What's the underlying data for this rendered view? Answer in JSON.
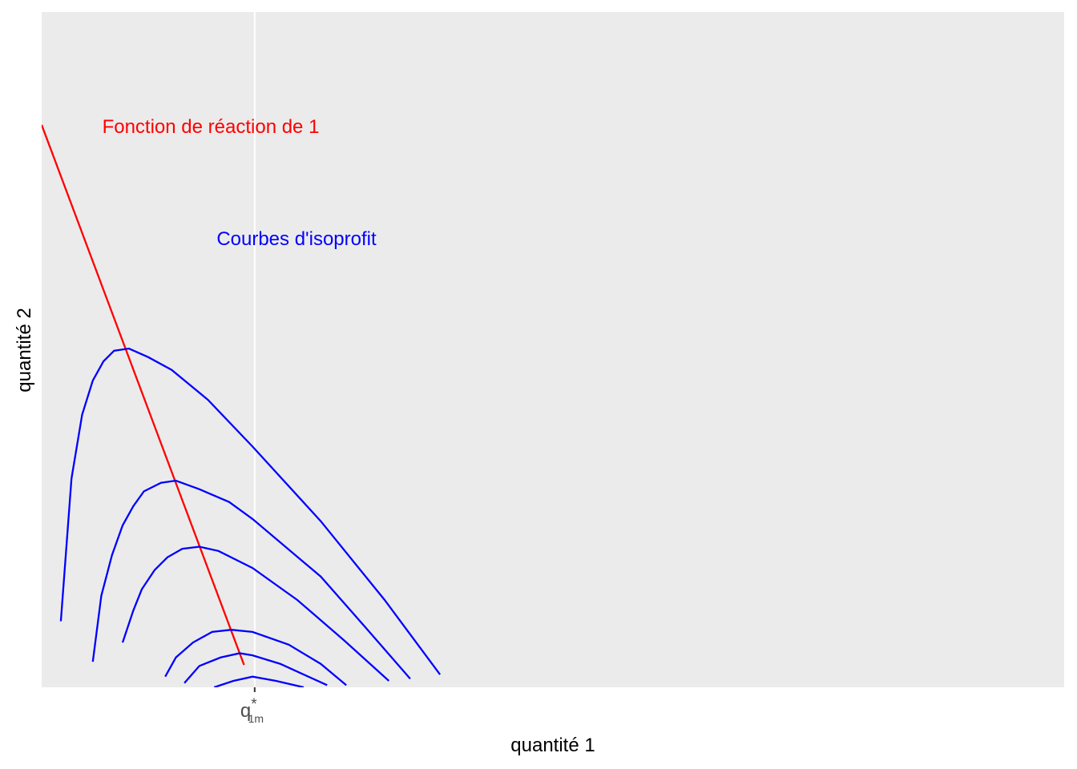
{
  "chart_data": {
    "type": "line",
    "x_label": "quantité 1",
    "y_label": "quantité 2",
    "annotations": [
      "Fonction de réaction de 1",
      "Courbes d'isoprofit"
    ],
    "annotation_colors": [
      "#ff0000",
      "#0000ff"
    ],
    "xlim": [
      0,
      4.8
    ],
    "ylim": [
      0,
      3.17
    ],
    "xticks": [
      {
        "value": 1,
        "label": "q",
        "superscript": "*",
        "subscript": "1m"
      }
    ],
    "yticks": [],
    "grid": true,
    "series": [
      {
        "color": "#ff0000",
        "x": [
          0,
          0.95
        ],
        "values": [
          2.64,
          0.105
        ]
      },
      {
        "color": "#0000ff",
        "x": [
          0.09,
          0.14,
          0.19,
          0.24,
          0.29,
          0.34,
          0.41,
          0.5,
          0.61,
          0.78,
          0.99,
          1.31,
          1.61,
          1.87
        ],
        "values": [
          0.31,
          0.98,
          1.28,
          1.44,
          1.53,
          1.58,
          1.59,
          1.55,
          1.49,
          1.35,
          1.13,
          0.78,
          0.41,
          0.06
        ]
      },
      {
        "color": "#0000ff",
        "x": [
          0.24,
          0.28,
          0.33,
          0.38,
          0.43,
          0.48,
          0.56,
          0.63,
          0.74,
          0.88,
          0.99,
          1.31,
          1.53,
          1.73
        ],
        "values": [
          0.12,
          0.43,
          0.62,
          0.76,
          0.85,
          0.92,
          0.96,
          0.97,
          0.93,
          0.87,
          0.79,
          0.52,
          0.27,
          0.04
        ]
      },
      {
        "color": "#0000ff",
        "x": [
          0.38,
          0.43,
          0.47,
          0.53,
          0.59,
          0.66,
          0.74,
          0.83,
          0.99,
          1.2,
          1.42,
          1.63
        ],
        "values": [
          0.21,
          0.36,
          0.46,
          0.55,
          0.61,
          0.65,
          0.66,
          0.64,
          0.56,
          0.41,
          0.22,
          0.03
        ]
      },
      {
        "color": "#0000ff",
        "x": [
          0.58,
          0.63,
          0.71,
          0.8,
          0.89,
          0.99,
          1.16,
          1.31,
          1.43
        ],
        "values": [
          0.05,
          0.14,
          0.21,
          0.26,
          0.27,
          0.26,
          0.2,
          0.11,
          0.01
        ]
      },
      {
        "color": "#0000ff",
        "x": [
          0.67,
          0.74,
          0.84,
          0.93,
          0.99,
          1.12,
          1.23,
          1.34
        ],
        "values": [
          0.02,
          0.1,
          0.14,
          0.16,
          0.15,
          0.11,
          0.06,
          0.01
        ]
      },
      {
        "color": "#0000ff",
        "x": [
          0.81,
          0.9,
          0.99,
          1.1,
          1.23
        ],
        "values": [
          0.0,
          0.03,
          0.05,
          0.03,
          0.0
        ]
      }
    ]
  }
}
